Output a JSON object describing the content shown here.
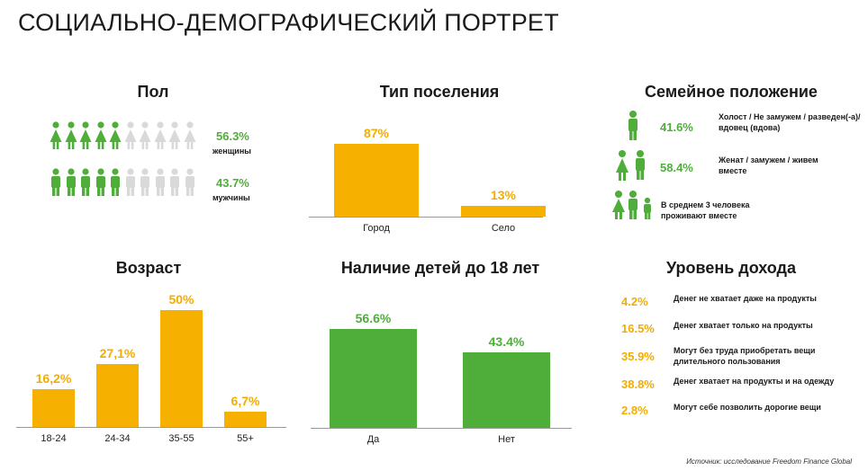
{
  "page": {
    "title": "СОЦИАЛЬНО-ДЕМОГРАФИЧЕСКИЙ ПОРТРЕТ",
    "source": "Источник: исследование Freedom Finance Global"
  },
  "colors": {
    "green": "#4fae3a",
    "orange": "#f6b000",
    "grey": "#d9d9d9"
  },
  "gender": {
    "title": "Пол",
    "rows": [
      {
        "pct": "56.3%",
        "label": "женщины",
        "filled": 5,
        "total": 10,
        "icon": "female-person-icon"
      },
      {
        "pct": "43.7%",
        "label": "мужчины",
        "filled": 5,
        "total": 10,
        "icon": "male-person-icon"
      }
    ]
  },
  "family": {
    "title": "Семейное положение",
    "items": [
      {
        "icon": "single-person-icon",
        "pct": "41.6%",
        "text": "Холост / Не замужем / разведен(-а)/ вдовец (вдова)"
      },
      {
        "icon": "couple-icon",
        "pct": "58.4%",
        "text": "Женат / замужем / живем вместе"
      },
      {
        "icon": "family-icon",
        "pct": "",
        "text": "В среднем 3 человека проживают вместе"
      }
    ]
  },
  "income": {
    "title": "Уровень дохода",
    "items": [
      {
        "pct": "4.2%",
        "text": "Денег не хватает даже на продукты"
      },
      {
        "pct": "16.5%",
        "text": "Денег хватает только на продукты"
      },
      {
        "pct": "35.9%",
        "text": "Могут без труда приобретать вещи длительного пользования"
      },
      {
        "pct": "38.8%",
        "text": "Денег хватает на продукты и на одежду"
      },
      {
        "pct": "2.8%",
        "text": "Могут себе позволить дорогие вещи"
      }
    ]
  },
  "chart_data": [
    {
      "type": "bar",
      "title": "Тип поселения",
      "categories": [
        "Город",
        "Село"
      ],
      "values": [
        87,
        13
      ],
      "labels": [
        "87%",
        "13%"
      ],
      "ylim": [
        0,
        100
      ],
      "color": "#f6b000"
    },
    {
      "type": "bar",
      "title": "Возраст",
      "categories": [
        "18-24",
        "24-34",
        "35-55",
        "55+"
      ],
      "values": [
        16.2,
        27.1,
        50,
        6.7
      ],
      "labels": [
        "16,2%",
        "27,1%",
        "50%",
        "6,7%"
      ],
      "ylim": [
        0,
        50
      ],
      "color": "#f6b000"
    },
    {
      "type": "bar",
      "title": "Наличие детей до 18 лет",
      "categories": [
        "Да",
        "Нет"
      ],
      "values": [
        56.6,
        43.4
      ],
      "labels": [
        "56.6%",
        "43.4%"
      ],
      "ylim": [
        0,
        56.6
      ],
      "color": "#4fae3a"
    }
  ]
}
